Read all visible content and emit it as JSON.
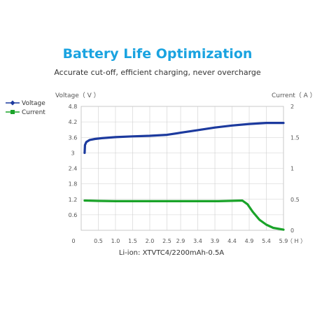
{
  "chart_data": {
    "type": "line",
    "title": "Battery Life Optimization",
    "subtitle": "Accurate cut-off, efficient charging, never overcharge",
    "caption": "Li-ion: XTVTC4/2200mAh-0.5A",
    "y_left_label": "Voltage（ V ）",
    "y_right_label": "Current（ A ）",
    "x_unit_label": "（ H ）",
    "x_origin_label": "0",
    "x_ticks": [
      "0.5",
      "1.0",
      "1.5",
      "2.0",
      "2.5",
      "2.9",
      "3.4",
      "3.9",
      "4.4",
      "4.9",
      "5.4",
      "5.9"
    ],
    "y_left_ticks": [
      "4.8",
      "4.2",
      "3.6",
      "3",
      "2.4",
      "1.8",
      "1.2",
      "0.6"
    ],
    "y_right_ticks": [
      "2",
      "1.5",
      "1",
      "0.5",
      "0"
    ],
    "xlim": [
      0,
      5.9
    ],
    "y_left_lim": [
      0,
      4.8
    ],
    "y_right_lim": [
      0,
      2
    ],
    "legend_position": "left",
    "grid": true,
    "series": [
      {
        "name": "Voltage",
        "axis": "left",
        "color": "#1c3a9e",
        "marker": "diamond",
        "x": [
          0.1,
          0.11,
          0.15,
          0.25,
          0.4,
          0.6,
          1.0,
          1.5,
          2.0,
          2.5,
          2.9,
          3.4,
          3.9,
          4.4,
          4.9,
          5.4,
          5.9
        ],
        "y": [
          3.0,
          3.3,
          3.42,
          3.5,
          3.54,
          3.57,
          3.61,
          3.64,
          3.66,
          3.7,
          3.78,
          3.88,
          3.98,
          4.06,
          4.12,
          4.16,
          4.16
        ]
      },
      {
        "name": "Current",
        "axis": "right",
        "color": "#1aa329",
        "marker": "square",
        "x": [
          0.1,
          0.5,
          1.0,
          2.0,
          3.0,
          4.0,
          4.7,
          4.85,
          5.0,
          5.2,
          5.4,
          5.6,
          5.9
        ],
        "y": [
          0.48,
          0.475,
          0.47,
          0.47,
          0.47,
          0.47,
          0.48,
          0.42,
          0.3,
          0.17,
          0.09,
          0.04,
          0.01
        ]
      }
    ]
  }
}
